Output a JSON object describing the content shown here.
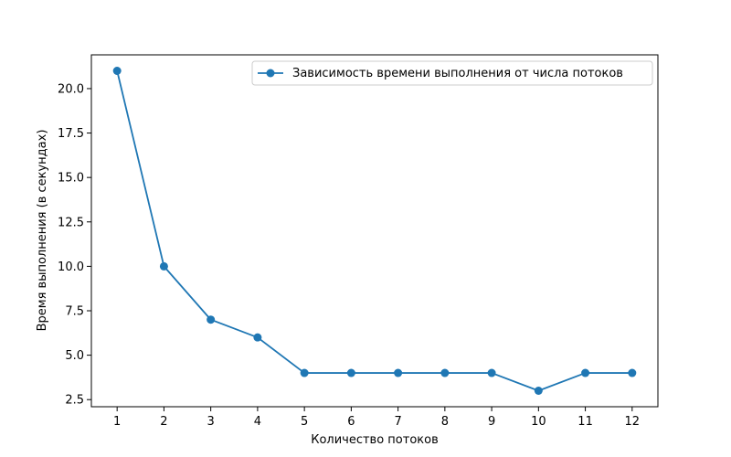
{
  "chart_data": {
    "type": "line",
    "title": "",
    "xlabel": "Количество потоков",
    "ylabel": "Время выполнения (в секундах)",
    "x": [
      1,
      2,
      3,
      4,
      5,
      6,
      7,
      8,
      9,
      10,
      11,
      12
    ],
    "x_tick_labels": [
      "1",
      "2",
      "3",
      "4",
      "5",
      "6",
      "7",
      "8",
      "9",
      "10",
      "11",
      "12"
    ],
    "y_ticks": [
      2.5,
      5.0,
      7.5,
      10.0,
      12.5,
      15.0,
      17.5,
      20.0
    ],
    "y_tick_labels": [
      "2.5",
      "5.0",
      "7.5",
      "10.0",
      "12.5",
      "15.0",
      "17.5",
      "20.0"
    ],
    "xlim": [
      0.45,
      12.55
    ],
    "ylim": [
      2.1,
      21.9
    ],
    "grid": false,
    "legend_position": "top-right",
    "series": [
      {
        "name": "Зависимость времени выполнения от числа потоков",
        "color": "#1f77b4",
        "marker": "circle",
        "values": [
          21,
          10,
          7,
          6,
          4,
          4,
          4,
          4,
          4,
          3,
          4,
          4
        ]
      }
    ]
  }
}
